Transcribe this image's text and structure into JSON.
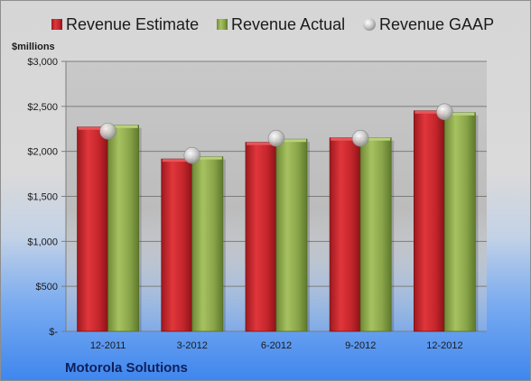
{
  "colors": {
    "estimate": "#c0242a",
    "actual": "#8aa54a",
    "gaap": "#c8c8c8",
    "footer": "#0f1f5c"
  },
  "chart_data": {
    "type": "bar",
    "unit_label": "$millions",
    "footer": "Motorola Solutions",
    "categories": [
      "12-2011",
      "3-2012",
      "6-2012",
      "9-2012",
      "12-2012"
    ],
    "series": [
      {
        "name": "Revenue Estimate",
        "kind": "bar",
        "values": [
          2270,
          1915,
          2100,
          2150,
          2450
        ]
      },
      {
        "name": "Revenue Actual",
        "kind": "bar",
        "values": [
          2290,
          1940,
          2135,
          2150,
          2430
        ]
      },
      {
        "name": "Revenue GAAP",
        "kind": "marker",
        "values": [
          2225,
          1955,
          2145,
          2145,
          2440
        ]
      }
    ],
    "ylim": [
      0,
      3000
    ],
    "yticks": [
      0,
      500,
      1000,
      1500,
      2000,
      2500,
      3000
    ],
    "ytick_labels": [
      "$-",
      "$500",
      "$1,000",
      "$1,500",
      "$2,000",
      "$2,500",
      "$3,000"
    ],
    "grid": true,
    "legend_position": "top"
  }
}
